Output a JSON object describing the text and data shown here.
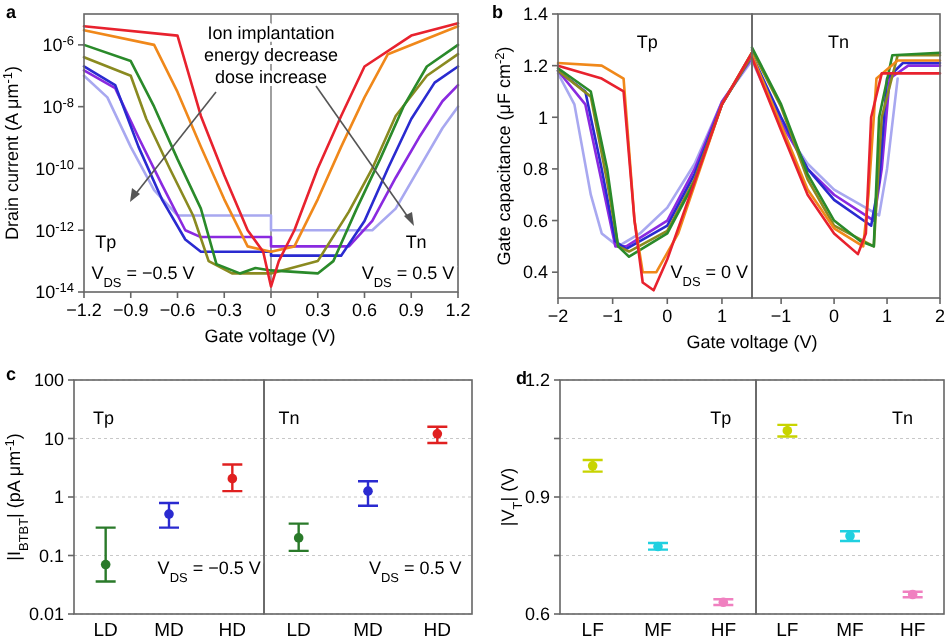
{
  "chart_data": [
    {
      "type": "line",
      "title": "a",
      "xlabel": "Gate voltage (V)",
      "ylabel": "Drain current (A μm$^{-1}$)",
      "log": true,
      "xlim": [
        -1.2,
        1.2
      ],
      "ylim": [
        1e-14,
        1e-05
      ],
      "xticks": [
        {
          "value": -1.2,
          "label": "−1.2"
        },
        {
          "value": -0.9,
          "label": "−0.9"
        },
        {
          "value": -0.6,
          "label": "−0.6"
        },
        {
          "value": -0.3,
          "label": "−0.3"
        },
        0.0,
        0.3,
        0.6,
        0.9,
        1.2
      ],
      "yticks": [
        {
          "value": 1e-14,
          "label": "10$^{-14}$"
        },
        {
          "value": 1e-12,
          "label": "10$^{-12}$"
        },
        {
          "value": 1e-10,
          "label": "10$^{-10}$"
        },
        {
          "value": 1e-08,
          "label": "10$^{-8}$"
        },
        {
          "value": 1e-06,
          "label": "10$^{-6}$"
        }
      ],
      "ref_lines": [
        {
          "axis": "x",
          "value": 0,
          "color": "#888888"
        }
      ],
      "annotations": [
        "Ion implantation\nenergy decrease\ndose increase",
        "Tp",
        "V$_{DS}$ = −0.5 V",
        "Tn",
        "V$_{DS}$ = 0.5 V"
      ],
      "series": [
        {
          "color": "#a8a8f0",
          "x": [
            -1.2,
            -1.05,
            -0.9,
            -0.75,
            -0.6,
            0,
            0,
            0.65,
            0.8,
            0.95,
            1.1,
            1.2
          ],
          "values": [
            1e-07,
            2e-08,
            5e-10,
            2e-11,
            3e-12,
            3e-12,
            1e-12,
            1e-12,
            5e-12,
            1e-10,
            2e-09,
            1e-08
          ]
        },
        {
          "color": "#8a2ae0",
          "x": [
            -1.2,
            -1.0,
            -0.85,
            -0.7,
            -0.55,
            -0.45,
            0,
            0,
            0.5,
            0.65,
            0.8,
            0.95,
            1.1,
            1.2
          ],
          "values": [
            1.5e-07,
            4e-08,
            1e-09,
            3e-11,
            1e-12,
            6e-13,
            6e-13,
            3e-13,
            3e-13,
            2e-12,
            5e-11,
            1e-09,
            1.5e-08,
            5e-08
          ]
        },
        {
          "color": "#2a2ad0",
          "x": [
            -1.2,
            -1.0,
            -0.85,
            -0.7,
            -0.55,
            -0.45,
            0,
            0,
            0.45,
            0.6,
            0.75,
            0.9,
            1.05,
            1.2
          ],
          "values": [
            2e-07,
            5e-08,
            5e-10,
            1e-11,
            5e-13,
            2e-13,
            2e-13,
            1.5e-13,
            1.5e-13,
            2e-12,
            1e-10,
            4e-09,
            6e-08,
            2e-07
          ]
        },
        {
          "color": "#8a8a20",
          "x": [
            -1.2,
            -0.9,
            -0.8,
            -0.65,
            -0.5,
            -0.4,
            -0.25,
            0,
            0,
            0.3,
            0.5,
            0.65,
            0.8,
            1.0,
            1.2
          ],
          "values": [
            4e-07,
            1e-07,
            4e-09,
            1e-10,
            3e-12,
            1e-13,
            4e-14,
            4e-14,
            4e-14,
            1e-13,
            4e-12,
            1e-10,
            5e-09,
            1e-07,
            5e-07
          ]
        },
        {
          "color": "#2a8a2a",
          "x": [
            -1.2,
            -0.9,
            -0.75,
            -0.6,
            -0.45,
            -0.35,
            -0.2,
            -0.1,
            0,
            0,
            0.3,
            0.4,
            0.55,
            0.7,
            0.85,
            1.0,
            1.2
          ],
          "values": [
            1e-06,
            3e-07,
            1e-08,
            2e-10,
            5e-12,
            8e-14,
            4e-14,
            6e-14,
            5e-14,
            5e-14,
            4e-14,
            1e-13,
            5e-12,
            2e-10,
            1e-08,
            2e-07,
            1e-06
          ]
        },
        {
          "color": "#f0881a",
          "x": [
            -1.2,
            -0.75,
            -0.6,
            -0.45,
            -0.3,
            -0.15,
            0,
            0,
            0.15,
            0.3,
            0.45,
            0.6,
            0.75,
            1.2
          ],
          "values": [
            3e-06,
            1e-06,
            3e-08,
            5e-10,
            1e-11,
            3e-13,
            2e-13,
            2e-13,
            3e-13,
            1e-11,
            5e-10,
            2e-08,
            5e-07,
            4e-06
          ]
        },
        {
          "color": "#e8222e",
          "x": [
            -1.2,
            -0.6,
            -0.45,
            -0.3,
            -0.15,
            -0.05,
            0,
            0.05,
            0.15,
            0.3,
            0.45,
            0.6,
            0.9,
            1.2
          ],
          "values": [
            4e-06,
            2e-06,
            5e-09,
            6e-11,
            1e-12,
            2e-13,
            1.5e-14,
            1e-13,
            1e-12,
            1e-10,
            5e-09,
            2e-07,
            2e-06,
            5e-06
          ]
        }
      ]
    },
    {
      "type": "line",
      "title": "b",
      "xlabel": "Gate voltage (V)",
      "ylabel": "Gate capacitance (μF cm$^{-2}$)",
      "xlim": [
        -2,
        1.55
      ],
      "ylim": [
        0.3,
        1.4
      ],
      "xticks": [
        {
          "value": -2,
          "label": "−2"
        },
        {
          "value": -1,
          "label": "−1"
        },
        0,
        1
      ],
      "yticks": [
        0.4,
        0.6,
        0.8,
        1.0,
        1.2,
        1.4
      ],
      "annotations": [
        "Tp",
        "V$_{DS}$ = 0 V"
      ],
      "series": [
        {
          "color": "#a8a8f0",
          "x": [
            -2,
            -1.7,
            -1.4,
            -1.2,
            -0.9,
            -0.5,
            0,
            0.5,
            1,
            1.55
          ],
          "values": [
            1.17,
            1.05,
            0.7,
            0.55,
            0.5,
            0.55,
            0.65,
            0.82,
            1.06,
            1.22
          ]
        },
        {
          "color": "#8a2ae0",
          "x": [
            -2,
            -1.5,
            -1.2,
            -0.95,
            -0.75,
            0,
            0.5,
            1,
            1.55
          ],
          "values": [
            1.18,
            1.05,
            0.75,
            0.5,
            0.5,
            0.6,
            0.8,
            1.06,
            1.23
          ]
        },
        {
          "color": "#2a2ad0",
          "x": [
            -2,
            -1.5,
            -1.2,
            -0.95,
            -0.75,
            0,
            0.5,
            1,
            1.55
          ],
          "values": [
            1.18,
            1.1,
            0.8,
            0.52,
            0.49,
            0.58,
            0.78,
            1.05,
            1.24
          ]
        },
        {
          "color": "#8a8a20",
          "x": [
            -2,
            -1.4,
            -1.1,
            -0.9,
            -0.7,
            0,
            0.5,
            1,
            1.55
          ],
          "values": [
            1.18,
            1.08,
            0.75,
            0.5,
            0.48,
            0.56,
            0.76,
            1.05,
            1.24
          ]
        },
        {
          "color": "#2a8a2a",
          "x": [
            -2,
            -1.4,
            -1.1,
            -0.9,
            -0.7,
            0,
            0.5,
            1,
            1.55
          ],
          "values": [
            1.19,
            1.1,
            0.8,
            0.5,
            0.46,
            0.55,
            0.75,
            1.05,
            1.25
          ]
        },
        {
          "color": "#f0881a",
          "x": [
            -2,
            -1.2,
            -0.8,
            -0.6,
            -0.45,
            -0.2,
            0.2,
            0.6,
            1,
            1.55
          ],
          "values": [
            1.21,
            1.2,
            1.15,
            0.6,
            0.4,
            0.4,
            0.55,
            0.8,
            1.05,
            1.25
          ]
        },
        {
          "color": "#e8222e",
          "x": [
            -2,
            -1.2,
            -0.8,
            -0.6,
            -0.45,
            -0.25,
            0,
            0.5,
            1,
            1.55
          ],
          "values": [
            1.2,
            1.15,
            1.1,
            0.6,
            0.36,
            0.33,
            0.45,
            0.75,
            1.05,
            1.25
          ]
        }
      ]
    },
    {
      "type": "line",
      "xlim": [
        -1.55,
        2
      ],
      "ylim": [
        0.3,
        1.4
      ],
      "tick_labels": "x",
      "xticks": [
        {
          "value": -1,
          "label": "−1"
        },
        0,
        1,
        2
      ],
      "annotations": [
        "Tn"
      ],
      "series": [
        {
          "color": "#a8a8f0",
          "x": [
            -1.55,
            -1,
            -0.5,
            0,
            0.85,
            1.0,
            1.2
          ],
          "values": [
            1.22,
            0.97,
            0.82,
            0.72,
            0.62,
            0.8,
            1.15
          ]
        },
        {
          "color": "#8a2ae0",
          "x": [
            -1.55,
            -1,
            -0.5,
            0,
            0.75,
            0.9,
            1.05,
            1.4,
            2
          ],
          "values": [
            1.23,
            0.98,
            0.8,
            0.7,
            0.6,
            0.8,
            1.15,
            1.2,
            1.2
          ]
        },
        {
          "color": "#2a2ad0",
          "x": [
            -1.55,
            -1,
            -0.5,
            0,
            0.7,
            0.85,
            1.0,
            1.3,
            2
          ],
          "values": [
            1.24,
            1.0,
            0.8,
            0.68,
            0.58,
            0.75,
            1.15,
            1.21,
            1.21
          ]
        },
        {
          "color": "#8a8a20",
          "x": [
            -1.55,
            -1,
            -0.5,
            0,
            0.75,
            0.9,
            1.2,
            2
          ],
          "values": [
            1.26,
            1.04,
            0.76,
            0.58,
            0.5,
            1.0,
            1.24,
            1.24
          ]
        },
        {
          "color": "#2a8a2a",
          "x": [
            -1.55,
            -1,
            -0.5,
            0,
            0.5,
            0.75,
            0.85,
            1.1,
            2
          ],
          "values": [
            1.27,
            1.05,
            0.78,
            0.6,
            0.52,
            0.5,
            1.0,
            1.24,
            1.25
          ]
        },
        {
          "color": "#f0881a",
          "x": [
            -1.55,
            -1,
            -0.5,
            0,
            0.55,
            0.65,
            0.8,
            1.2,
            2
          ],
          "values": [
            1.24,
            0.97,
            0.72,
            0.57,
            0.5,
            0.7,
            1.15,
            1.22,
            1.22
          ]
        },
        {
          "color": "#e8222e",
          "x": [
            -1.55,
            -1,
            -0.5,
            0,
            0.45,
            0.6,
            0.7,
            0.9,
            2
          ],
          "values": [
            1.23,
            0.95,
            0.7,
            0.55,
            0.47,
            0.55,
            1.0,
            1.17,
            1.17
          ]
        }
      ]
    },
    {
      "type": "scatter",
      "title": "c",
      "ylabel": "|I$_{BTBT}$| (pA μm$^{-1}$)",
      "log": true,
      "ylim": [
        0.01,
        100
      ],
      "yticks": [
        0.01,
        0.1,
        1,
        10,
        100
      ],
      "grid": "y",
      "marker": "circle",
      "categories": [
        "LD",
        "MD",
        "HD"
      ],
      "values": [
        0.07,
        0.51,
        2.06
      ],
      "errors": [
        [
          0.036,
          0.3
        ],
        [
          0.3,
          0.79
        ],
        [
          1.26,
          3.6
        ]
      ],
      "colors": [
        "#2a7a2a",
        "#2a2ad0",
        "#e02020"
      ],
      "annotations": [
        "Tp",
        "V$_{DS}$ = −0.5 V"
      ]
    },
    {
      "type": "scatter",
      "log": true,
      "ylim": [
        0.01,
        100
      ],
      "yticks": [
        0.01,
        0.1,
        1,
        10,
        100
      ],
      "grid": "y",
      "tick_labels": "x",
      "marker": "circle",
      "categories": [
        "LD",
        "MD",
        "HD"
      ],
      "values": [
        0.2,
        1.26,
        12
      ],
      "errors": [
        [
          0.12,
          0.35
        ],
        [
          0.71,
          1.86
        ],
        [
          8.4,
          15.9
        ]
      ],
      "colors": [
        "#2a7a2a",
        "#2a2ad0",
        "#e02020"
      ],
      "annotations": [
        "Tn",
        "V$_{DS}$ = 0.5 V"
      ]
    },
    {
      "type": "scatter",
      "title": "d",
      "ylabel": "|V$_{T}$| (V)",
      "ylim": [
        0.6,
        1.2
      ],
      "yticks": [
        0.6,
        {
          "value": 0.75,
          "label": null
        },
        0.9,
        {
          "value": 1.05,
          "label": null
        },
        1.2
      ],
      "grid": "y",
      "marker": "circle",
      "categories": [
        "LF",
        "MF",
        "HF"
      ],
      "values": [
        0.98,
        0.773,
        0.63
      ],
      "errors": [
        [
          0.965,
          0.995
        ],
        [
          0.765,
          0.782
        ],
        [
          0.623,
          0.638
        ]
      ],
      "colors": [
        "#c8d400",
        "#20d0e0",
        "#f080c0"
      ],
      "annotations": [
        "Tp"
      ]
    },
    {
      "type": "scatter",
      "ylim": [
        0.6,
        1.2
      ],
      "yticks": [
        0.6,
        {
          "value": 0.75,
          "label": null
        },
        0.9,
        {
          "value": 1.05,
          "label": null
        },
        1.2
      ],
      "grid": "y",
      "tick_labels": "x",
      "marker": "circle",
      "categories": [
        "LF",
        "MF",
        "HF"
      ],
      "values": [
        1.07,
        0.8,
        0.65
      ],
      "errors": [
        [
          1.055,
          1.085
        ],
        [
          0.787,
          0.812
        ],
        [
          0.643,
          0.657
        ]
      ],
      "colors": [
        "#c8d400",
        "#20d0e0",
        "#f080c0"
      ],
      "annotations": [
        "Tn"
      ]
    }
  ]
}
